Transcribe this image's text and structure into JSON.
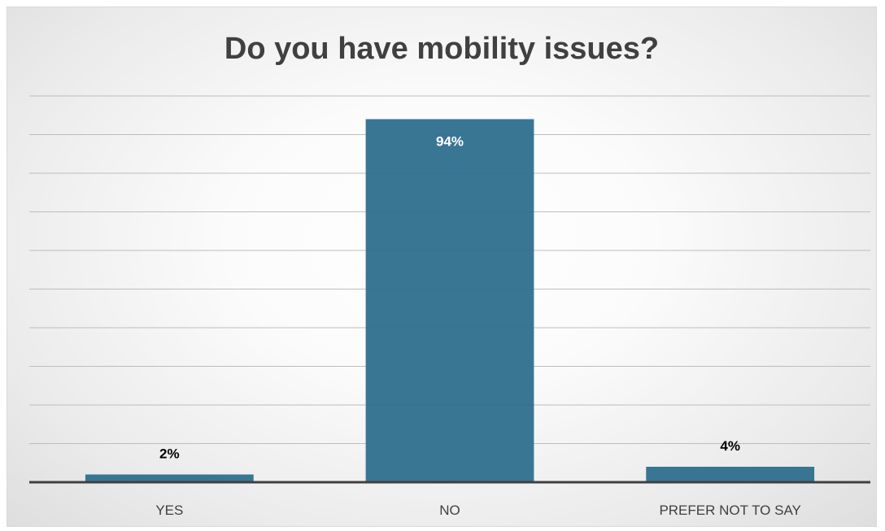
{
  "chart_data": {
    "type": "bar",
    "title": "Do you have mobility issues?",
    "xlabel": "",
    "ylabel": "",
    "categories": [
      "YES",
      "NO",
      "PREFER NOT TO SAY"
    ],
    "values": [
      2,
      94,
      4
    ],
    "data_labels": [
      "2%",
      "94%",
      "4%"
    ],
    "ylim": [
      0,
      100
    ],
    "grid": true,
    "legend": "none",
    "bar_color": "#2e6f8e"
  }
}
